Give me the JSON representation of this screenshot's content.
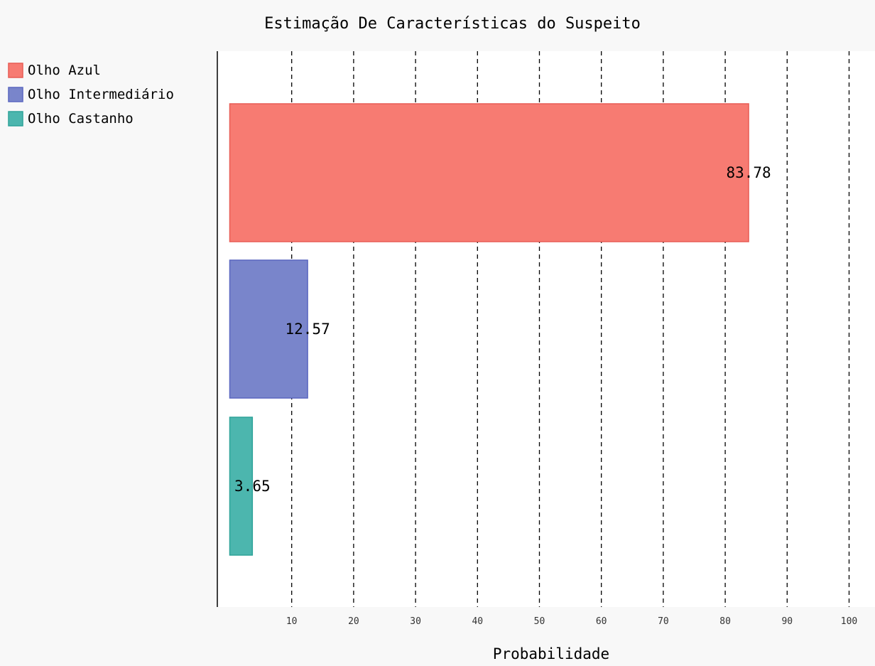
{
  "chart_data": {
    "type": "bar",
    "orientation": "horizontal",
    "title": "Estimação De Características do Suspeito",
    "xlabel": "Probabilidade",
    "ylabel": "",
    "xlim": [
      0,
      100
    ],
    "ticks": [
      "10",
      "20",
      "30",
      "40",
      "50",
      "60",
      "70",
      "80",
      "90",
      "100"
    ],
    "tick_values": [
      10,
      20,
      30,
      40,
      50,
      60,
      70,
      80,
      90,
      100
    ],
    "grid": "vertical dashed",
    "legend_position": "top-left",
    "series": [
      {
        "name": "Olho Azul",
        "value": 83.78,
        "label": "83.78",
        "color": "#f77b72",
        "stroke": "#e85d55"
      },
      {
        "name": "Olho Intermediário",
        "value": 12.57,
        "label": "12.57",
        "color": "#7985cb",
        "stroke": "#5a67c0"
      },
      {
        "name": "Olho Castanho",
        "value": 3.65,
        "label": "3.65",
        "color": "#4cb6ae",
        "stroke": "#2ea399"
      }
    ]
  }
}
